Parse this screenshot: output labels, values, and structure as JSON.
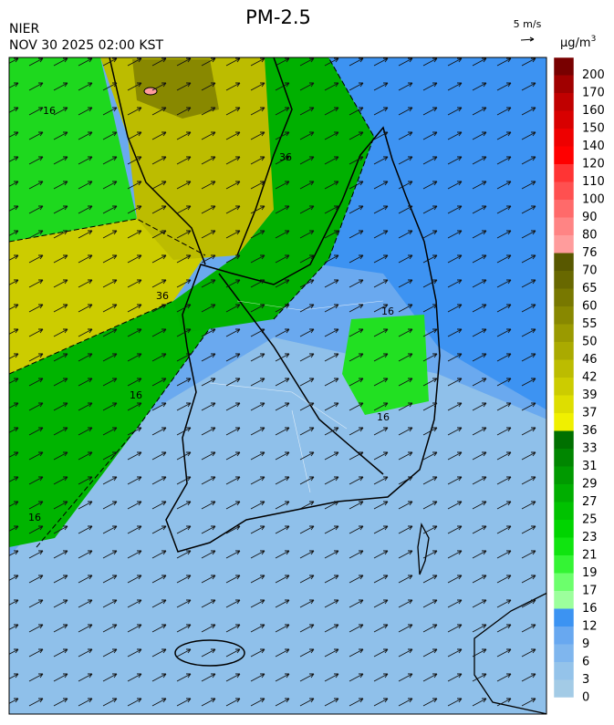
{
  "header": {
    "agency": "NIER",
    "datetime": "NOV 30 2025 02:00 KST",
    "title": "PM-2.5"
  },
  "wind_scale": {
    "label": "5 m/s"
  },
  "legend": {
    "unit": "μg/m",
    "unit_exponent": "3",
    "levels": [
      {
        "value": 0,
        "color": "#a3cbe6"
      },
      {
        "value": 3,
        "color": "#94c3ea"
      },
      {
        "value": 6,
        "color": "#7fb6ee"
      },
      {
        "value": 9,
        "color": "#68a8f0"
      },
      {
        "value": 12,
        "color": "#3c93f2"
      },
      {
        "value": 16,
        "color": "#9cff9c"
      },
      {
        "value": 17,
        "color": "#6cff6c"
      },
      {
        "value": 19,
        "color": "#34f434"
      },
      {
        "value": 21,
        "color": "#10e410"
      },
      {
        "value": 23,
        "color": "#00d400"
      },
      {
        "value": 25,
        "color": "#00c200"
      },
      {
        "value": 27,
        "color": "#00ae00"
      },
      {
        "value": 29,
        "color": "#009a00"
      },
      {
        "value": 31,
        "color": "#008600"
      },
      {
        "value": 33,
        "color": "#007000"
      },
      {
        "value": 36,
        "color": "#f0f000"
      },
      {
        "value": 37,
        "color": "#dede00"
      },
      {
        "value": 39,
        "color": "#cccc00"
      },
      {
        "value": 42,
        "color": "#bcbc00"
      },
      {
        "value": 46,
        "color": "#aaaa00"
      },
      {
        "value": 50,
        "color": "#9a9a00"
      },
      {
        "value": 55,
        "color": "#888800"
      },
      {
        "value": 60,
        "color": "#787800"
      },
      {
        "value": 65,
        "color": "#686800"
      },
      {
        "value": 70,
        "color": "#585800"
      },
      {
        "value": 76,
        "color": "#ff9c9c"
      },
      {
        "value": 80,
        "color": "#ff8484"
      },
      {
        "value": 90,
        "color": "#ff6a6a"
      },
      {
        "value": 100,
        "color": "#ff5050"
      },
      {
        "value": 110,
        "color": "#ff3434"
      },
      {
        "value": 120,
        "color": "#ff0000"
      },
      {
        "value": 140,
        "color": "#ee0000"
      },
      {
        "value": 150,
        "color": "#d80000"
      },
      {
        "value": 160,
        "color": "#c00000"
      },
      {
        "value": 170,
        "color": "#a00000"
      },
      {
        "value": 200,
        "color": "#780000"
      }
    ]
  },
  "map": {
    "contour_labels": [
      "16",
      "36",
      "36",
      "16",
      "16",
      "16",
      "16"
    ]
  }
}
